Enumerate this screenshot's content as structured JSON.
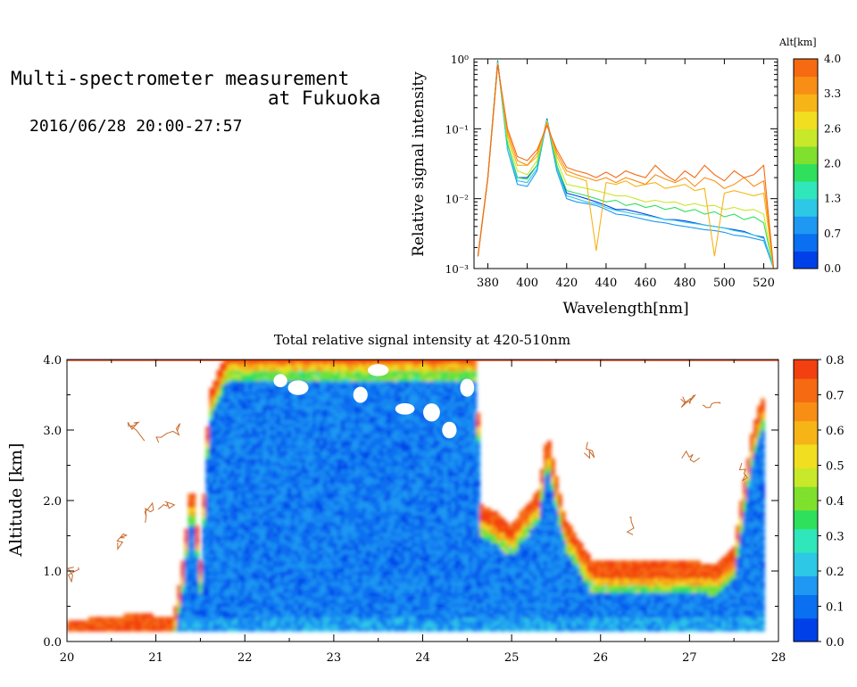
{
  "header": {
    "title_line1": "Multi-spectrometer measurement",
    "title_line2": "at Fukuoka",
    "datetime": "2016/06/28 20:00-27:57"
  },
  "chart_data": [
    {
      "type": "line",
      "xlabel": "Wavelength[nm]",
      "ylabel": "Relative signal intensity",
      "x_ticks": [
        "380",
        "400",
        "420",
        "440",
        "460",
        "480",
        "500",
        "520"
      ],
      "xlim": [
        373,
        527
      ],
      "y_scale": "log",
      "ylim": [
        0.001,
        1
      ],
      "y_ticks": [
        "10⁻³",
        "10⁻²",
        "10⁻¹",
        "10⁰"
      ],
      "colorbar": {
        "label": "Alt[km]",
        "ticks": [
          "0.0",
          "0.7",
          "1.3",
          "2.0",
          "2.6",
          "3.3",
          "4.0"
        ],
        "colors": [
          "#0040e8",
          "#0a6ff0",
          "#1e98f2",
          "#2dc8e6",
          "#30e6bb",
          "#2fe05d",
          "#7fe02d",
          "#c8e82a",
          "#f2de20",
          "#f6b417",
          "#f88e14",
          "#f66a12"
        ]
      },
      "x": [
        375,
        380,
        385,
        390,
        395,
        400,
        405,
        410,
        415,
        420,
        425,
        430,
        435,
        440,
        445,
        450,
        455,
        460,
        465,
        470,
        475,
        480,
        485,
        490,
        495,
        500,
        505,
        510,
        515,
        520,
        525
      ],
      "series": [
        {
          "color": "#0040e8",
          "values": [
            0.0015,
            0.02,
            0.95,
            0.06,
            0.02,
            0.02,
            0.03,
            0.14,
            0.03,
            0.012,
            0.011,
            0.01,
            0.009,
            0.008,
            0.007,
            0.007,
            0.0065,
            0.006,
            0.0055,
            0.005,
            0.005,
            0.0048,
            0.0045,
            0.0042,
            0.004,
            0.0038,
            0.0036,
            0.0034,
            0.003,
            0.0028,
            0.001
          ]
        },
        {
          "color": "#1e98f2",
          "values": [
            0.0015,
            0.02,
            0.9,
            0.05,
            0.016,
            0.015,
            0.025,
            0.13,
            0.025,
            0.01,
            0.009,
            0.0085,
            0.008,
            0.007,
            0.006,
            0.0058,
            0.0054,
            0.005,
            0.0047,
            0.0045,
            0.0042,
            0.004,
            0.0038,
            0.0036,
            0.0035,
            0.0033,
            0.003,
            0.0029,
            0.0027,
            0.0025,
            0.001
          ]
        },
        {
          "color": "#2dc8e6",
          "values": [
            0.0015,
            0.02,
            0.92,
            0.05,
            0.018,
            0.017,
            0.027,
            0.135,
            0.028,
            0.011,
            0.01,
            0.009,
            0.0085,
            0.0075,
            0.0068,
            0.0064,
            0.006,
            0.0058,
            0.0054,
            0.005,
            0.0049,
            0.0046,
            0.0044,
            0.0042,
            0.004,
            0.0038,
            0.0035,
            0.0033,
            0.003,
            0.0027,
            0.001
          ]
        },
        {
          "color": "#2fe05d",
          "values": [
            0.0015,
            0.02,
            0.9,
            0.06,
            0.02,
            0.019,
            0.03,
            0.13,
            0.03,
            0.013,
            0.012,
            0.011,
            0.01,
            0.009,
            0.0095,
            0.008,
            0.0085,
            0.0075,
            0.008,
            0.007,
            0.0075,
            0.0065,
            0.007,
            0.006,
            0.0065,
            0.0055,
            0.006,
            0.005,
            0.0055,
            0.0045,
            0.001
          ]
        },
        {
          "color": "#c8e82a",
          "values": [
            0.0015,
            0.02,
            0.88,
            0.07,
            0.025,
            0.022,
            0.035,
            0.13,
            0.035,
            0.016,
            0.015,
            0.014,
            0.013,
            0.012,
            0.011,
            0.011,
            0.01,
            0.009,
            0.0095,
            0.0088,
            0.009,
            0.008,
            0.0085,
            0.0078,
            0.008,
            0.007,
            0.0075,
            0.0068,
            0.007,
            0.006,
            0.001
          ]
        },
        {
          "color": "#f6b417",
          "values": [
            0.0015,
            0.02,
            0.85,
            0.08,
            0.03,
            0.03,
            0.04,
            0.12,
            0.04,
            0.022,
            0.02,
            0.018,
            0.0018,
            0.017,
            0.016,
            0.018,
            0.015,
            0.016,
            0.017,
            0.014,
            0.015,
            0.016,
            0.013,
            0.014,
            0.0015,
            0.012,
            0.013,
            0.012,
            0.011,
            0.012,
            0.001
          ]
        },
        {
          "color": "#f88e14",
          "values": [
            0.0015,
            0.02,
            0.85,
            0.09,
            0.035,
            0.03,
            0.045,
            0.12,
            0.045,
            0.025,
            0.022,
            0.02,
            0.018,
            0.02,
            0.017,
            0.02,
            0.018,
            0.016,
            0.022,
            0.019,
            0.017,
            0.02,
            0.015,
            0.02,
            0.018,
            0.014,
            0.016,
            0.02,
            0.015,
            0.018,
            0.001
          ]
        },
        {
          "color": "#f66a12",
          "values": [
            0.0015,
            0.02,
            0.82,
            0.1,
            0.04,
            0.035,
            0.05,
            0.11,
            0.05,
            0.028,
            0.025,
            0.023,
            0.02,
            0.024,
            0.02,
            0.025,
            0.022,
            0.02,
            0.03,
            0.022,
            0.018,
            0.025,
            0.02,
            0.03,
            0.022,
            0.018,
            0.025,
            0.02,
            0.022,
            0.03,
            0.001
          ]
        }
      ]
    },
    {
      "type": "heatmap",
      "title": "Total relative signal intensity at 420-510nm",
      "ylabel": "Altitude [km]",
      "x_ticks": [
        "20",
        "21",
        "22",
        "23",
        "24",
        "25",
        "26",
        "27",
        "28"
      ],
      "xlim": [
        20,
        28
      ],
      "y_ticks": [
        "0.0",
        "1.0",
        "2.0",
        "3.0",
        "4.0"
      ],
      "ylim": [
        0,
        4
      ],
      "colorbar": {
        "ticks": [
          "0.0",
          "0.1",
          "0.2",
          "0.3",
          "0.4",
          "0.5",
          "0.6",
          "0.7",
          "0.8"
        ],
        "range": [
          0,
          0.8
        ],
        "colors": [
          "#0040e8",
          "#0a6ff0",
          "#1e98f2",
          "#2dc8e6",
          "#30e6bb",
          "#2fe05d",
          "#7fe02d",
          "#c8e82a",
          "#f2de20",
          "#f6b417",
          "#f88e14",
          "#f66a12",
          "#f24010"
        ]
      },
      "data_extent": {
        "t_start": 20.0,
        "t_end": 27.8,
        "alt_min": 0.15
      },
      "cloud_base_km": [
        [
          20.0,
          0.15
        ],
        [
          20.4,
          0.2
        ],
        [
          20.8,
          0.25
        ],
        [
          21.2,
          0.2
        ],
        [
          21.3,
          1.0
        ],
        [
          21.4,
          2.2
        ],
        [
          21.5,
          1.0
        ],
        [
          21.6,
          3.4
        ],
        [
          21.8,
          4.0
        ],
        [
          24.6,
          4.0
        ],
        [
          24.65,
          1.8
        ],
        [
          24.8,
          1.7
        ],
        [
          25.0,
          1.5
        ],
        [
          25.1,
          1.7
        ],
        [
          25.3,
          2.0
        ],
        [
          25.4,
          2.8
        ],
        [
          25.6,
          1.6
        ],
        [
          25.9,
          1.0
        ],
        [
          26.4,
          1.0
        ],
        [
          27.0,
          1.0
        ],
        [
          27.3,
          0.95
        ],
        [
          27.5,
          1.2
        ],
        [
          27.7,
          2.8
        ],
        [
          27.8,
          3.3
        ]
      ]
    }
  ]
}
